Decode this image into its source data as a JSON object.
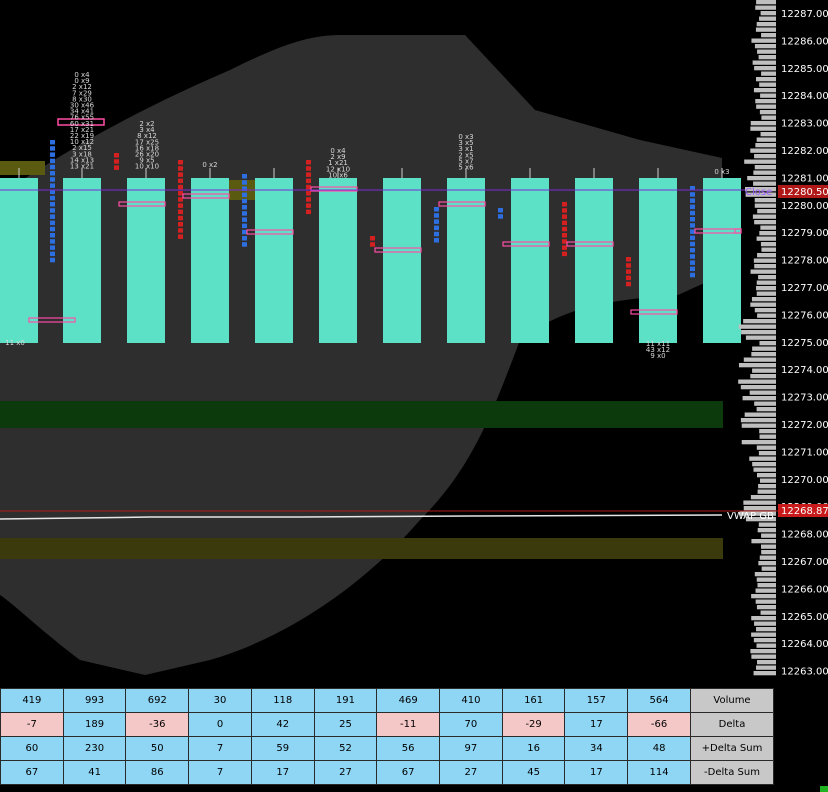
{
  "price_axis": {
    "ticks": [
      "12287.00",
      "12286.00",
      "12285.00",
      "12284.00",
      "12283.00",
      "12282.00",
      "12281.00",
      "12280.00",
      "12279.00",
      "12278.00",
      "12277.00",
      "12276.00",
      "12275.00",
      "12274.00",
      "12273.00",
      "12272.00",
      "12271.00",
      "12270.00",
      "12269.00",
      "12268.00",
      "12267.00",
      "12266.00",
      "12265.00",
      "12264.00",
      "12263.00"
    ],
    "close_price": "12280.50",
    "vwap_price": "12268.87"
  },
  "labels": {
    "close_label": "Close",
    "vwap_label": "VWAP GB"
  },
  "footprint_text": {
    "bar2": [
      "0 x4",
      "0 x9",
      "2 x12",
      "7 x29",
      "8 x30",
      "30 x46",
      "34 x41",
      "76 x55",
      "60 x31",
      "17 x21",
      "22 x19",
      "10 x12",
      "2 x15",
      "3 x18",
      "14 x13",
      "13 x21"
    ],
    "bar3": [
      "2 x2",
      "3 x4",
      "8 x12",
      "17 x25",
      "16 x18",
      "26 x20",
      "9 x5",
      "10 x10"
    ],
    "bar4": [
      "0 x2"
    ],
    "bar6": [
      "0 x4",
      "2 x9",
      "1 x21",
      "12 x10",
      "10 x6"
    ],
    "bar8": [
      "0 x3",
      "3 x5",
      "3 x1",
      "2 x5",
      "5 x7",
      "5 x6"
    ],
    "bar11": [
      "0 x3"
    ],
    "bar10_low": [
      "11 x11",
      "43 x12",
      "9 x0"
    ],
    "bar1_low": [
      "11 x0"
    ]
  },
  "stats": {
    "rows": [
      {
        "label": "Volume",
        "values": [
          "419",
          "993",
          "692",
          "30",
          "118",
          "191",
          "469",
          "410",
          "161",
          "157",
          "564"
        ],
        "styles": [
          "blue",
          "blue",
          "blue",
          "blue",
          "blue",
          "blue",
          "blue",
          "blue",
          "blue",
          "blue",
          "blue"
        ]
      },
      {
        "label": "Delta",
        "values": [
          "-7",
          "189",
          "-36",
          "0",
          "42",
          "25",
          "-11",
          "70",
          "-29",
          "17",
          "-66"
        ],
        "styles": [
          "pink",
          "blue",
          "pink",
          "blue",
          "blue",
          "blue",
          "pink",
          "blue",
          "pink",
          "blue",
          "pink"
        ]
      },
      {
        "label": "+Delta Sum",
        "values": [
          "60",
          "230",
          "50",
          "7",
          "59",
          "52",
          "56",
          "97",
          "16",
          "34",
          "48"
        ],
        "styles": [
          "blue",
          "blue",
          "blue",
          "blue",
          "blue",
          "blue",
          "blue",
          "blue",
          "blue",
          "blue",
          "blue"
        ]
      },
      {
        "label": "-Delta Sum",
        "values": [
          "67",
          "41",
          "86",
          "7",
          "17",
          "27",
          "67",
          "27",
          "45",
          "17",
          "114"
        ],
        "styles": [
          "blue",
          "blue",
          "blue",
          "blue",
          "blue",
          "blue",
          "blue",
          "blue",
          "blue",
          "blue",
          "blue"
        ]
      }
    ]
  },
  "colors": {
    "candle": "#5ce1c6",
    "profile_area": "#2e2e2e",
    "green_zone": "#0d3a0d",
    "olive_zone": "#3b3a0c",
    "close_line": "#7a2bd8",
    "close_badge": "#b01818",
    "vwap_badge": "#c81a1a",
    "vwap_line": "#e6e6e6",
    "buy_blue": "#2d6fe0",
    "sell_red": "#d42020",
    "poc_pink": "#ff4da6"
  }
}
